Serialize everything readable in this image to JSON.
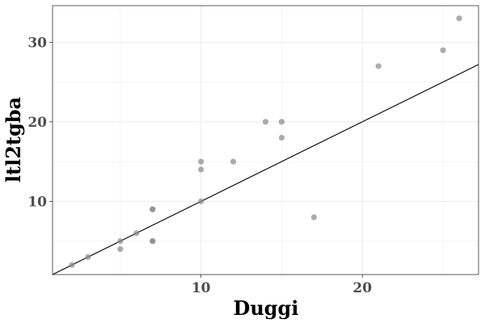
{
  "chart_data": {
    "type": "scatter",
    "title": "",
    "xlabel": "Duggi",
    "ylabel": "ltl2tgba",
    "xlim": [
      0.8,
      27.2
    ],
    "ylim": [
      0.8,
      34.6
    ],
    "x_ticks": [
      10,
      20
    ],
    "y_ticks": [
      10,
      20,
      30
    ],
    "x_tick_labels": [
      "10",
      "20"
    ],
    "y_tick_labels": [
      "10",
      "20",
      "30"
    ],
    "grid": true,
    "legend": "none",
    "colors": {
      "point": "#8c8c8c",
      "line": "#000000",
      "grid": "#ebebeb",
      "panel_border": "#333333",
      "tick_text": "#4d4d4d"
    },
    "points": [
      {
        "x": 2,
        "y": 2
      },
      {
        "x": 3,
        "y": 3
      },
      {
        "x": 5,
        "y": 4
      },
      {
        "x": 5,
        "y": 5
      },
      {
        "x": 6,
        "y": 6
      },
      {
        "x": 7,
        "y": 5
      },
      {
        "x": 7,
        "y": 5
      },
      {
        "x": 7,
        "y": 9
      },
      {
        "x": 7,
        "y": 9
      },
      {
        "x": 10,
        "y": 10
      },
      {
        "x": 10,
        "y": 14
      },
      {
        "x": 10,
        "y": 15
      },
      {
        "x": 12,
        "y": 15
      },
      {
        "x": 14,
        "y": 20
      },
      {
        "x": 15,
        "y": 18
      },
      {
        "x": 15,
        "y": 20
      },
      {
        "x": 17,
        "y": 8
      },
      {
        "x": 21,
        "y": 27
      },
      {
        "x": 25,
        "y": 29
      },
      {
        "x": 26,
        "y": 33
      }
    ],
    "reference_line": {
      "slope": 1,
      "intercept": 0
    }
  }
}
